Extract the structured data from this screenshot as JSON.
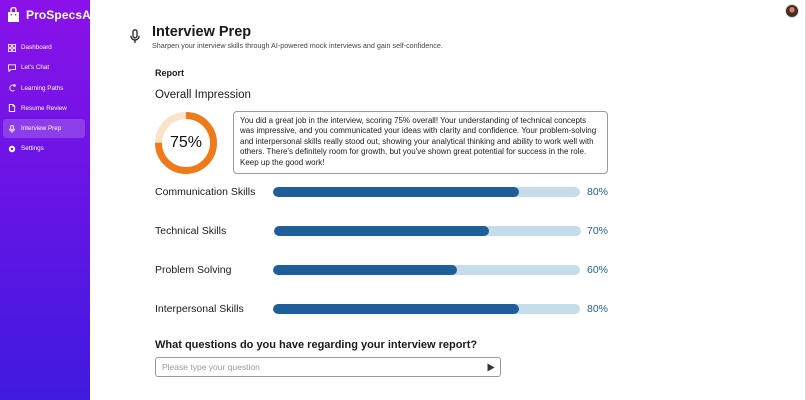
{
  "app": {
    "name": "ProSpecsAI"
  },
  "sidebar": {
    "items": [
      {
        "label": "Dashboard",
        "icon": "grid-icon",
        "active": false
      },
      {
        "label": "Let's Chat",
        "icon": "chat-icon",
        "active": false
      },
      {
        "label": "Learning Paths",
        "icon": "path-icon",
        "active": false
      },
      {
        "label": "Resume Review",
        "icon": "document-icon",
        "active": false
      },
      {
        "label": "Interview Prep",
        "icon": "mic-icon",
        "active": true
      },
      {
        "label": "Settings",
        "icon": "gear-icon",
        "active": false
      }
    ]
  },
  "header": {
    "title": "Interview Prep",
    "subtitle": "Sharpen your interview skills through AI-powered mock interviews and gain self-confidence."
  },
  "report": {
    "label": "Report",
    "overall_label": "Overall Impression",
    "overall_score": "75%",
    "overall_fraction": 0.75,
    "feedback": "You did a great job in the interview, scoring 75% overall! Your understanding of technical concepts was impressive, and you communicated your ideas with clarity and confidence. Your problem-solving and interpersonal skills really stood out, showing your analytical thinking and ability to work well with others. There's definitely room for growth, but you've shown great potential for success in the role. Keep up the good work!",
    "skills": [
      {
        "label": "Communication Skills",
        "value": "80%",
        "fraction": 0.8
      },
      {
        "label": "Technical Skills",
        "value": "70%",
        "fraction": 0.7
      },
      {
        "label": "Problem Solving",
        "value": "60%",
        "fraction": 0.6
      },
      {
        "label": "Interpersonal Skills",
        "value": "80%",
        "fraction": 0.8
      }
    ]
  },
  "question": {
    "label": "What questions do you have regarding your interview report?",
    "placeholder": "Please type your question",
    "value": ""
  },
  "colors": {
    "sidebar_top": "#8a12e8",
    "sidebar_bottom": "#3f1ae0",
    "ring_progress": "#f07a1a",
    "ring_track": "#fbe3c8",
    "bar_fill": "#1e5e9a",
    "bar_track": "#c5ddea"
  }
}
